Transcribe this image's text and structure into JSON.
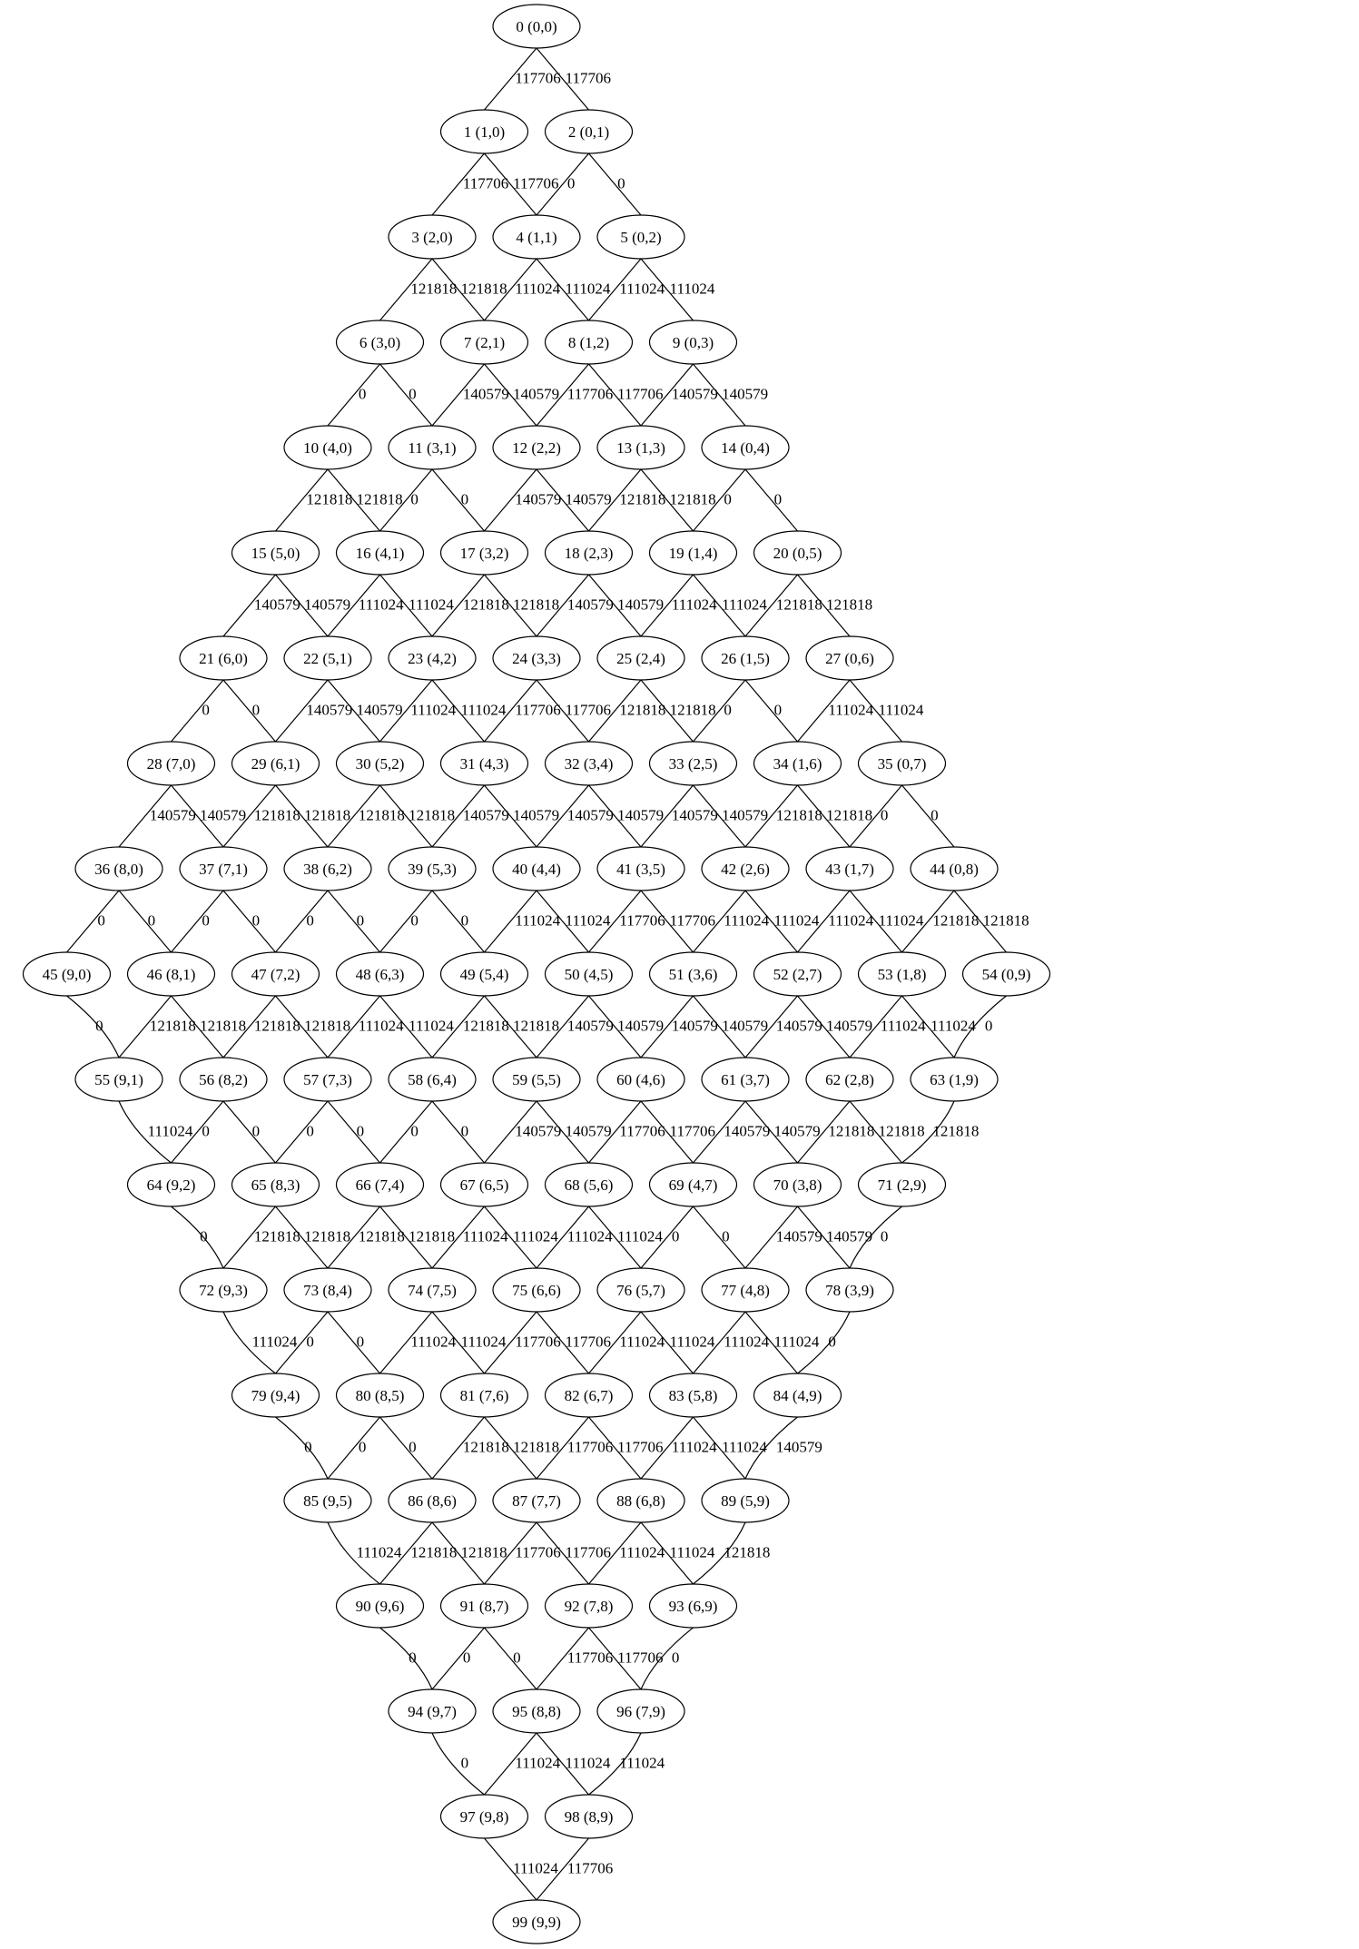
{
  "nodes": [
    {
      "id": 0,
      "label": "0 (0,0)"
    },
    {
      "id": 1,
      "label": "1 (1,0)"
    },
    {
      "id": 2,
      "label": "2 (0,1)"
    },
    {
      "id": 3,
      "label": "3 (2,0)"
    },
    {
      "id": 4,
      "label": "4 (1,1)"
    },
    {
      "id": 5,
      "label": "5 (0,2)"
    },
    {
      "id": 6,
      "label": "6 (3,0)"
    },
    {
      "id": 7,
      "label": "7 (2,1)"
    },
    {
      "id": 8,
      "label": "8 (1,2)"
    },
    {
      "id": 9,
      "label": "9 (0,3)"
    },
    {
      "id": 10,
      "label": "10 (4,0)"
    },
    {
      "id": 11,
      "label": "11 (3,1)"
    },
    {
      "id": 12,
      "label": "12 (2,2)"
    },
    {
      "id": 13,
      "label": "13 (1,3)"
    },
    {
      "id": 14,
      "label": "14 (0,4)"
    },
    {
      "id": 15,
      "label": "15 (5,0)"
    },
    {
      "id": 16,
      "label": "16 (4,1)"
    },
    {
      "id": 17,
      "label": "17 (3,2)"
    },
    {
      "id": 18,
      "label": "18 (2,3)"
    },
    {
      "id": 19,
      "label": "19 (1,4)"
    },
    {
      "id": 20,
      "label": "20 (0,5)"
    },
    {
      "id": 21,
      "label": "21 (6,0)"
    },
    {
      "id": 22,
      "label": "22 (5,1)"
    },
    {
      "id": 23,
      "label": "23 (4,2)"
    },
    {
      "id": 24,
      "label": "24 (3,3)"
    },
    {
      "id": 25,
      "label": "25 (2,4)"
    },
    {
      "id": 26,
      "label": "26 (1,5)"
    },
    {
      "id": 27,
      "label": "27 (0,6)"
    },
    {
      "id": 28,
      "label": "28 (7,0)"
    },
    {
      "id": 29,
      "label": "29 (6,1)"
    },
    {
      "id": 30,
      "label": "30 (5,2)"
    },
    {
      "id": 31,
      "label": "31 (4,3)"
    },
    {
      "id": 32,
      "label": "32 (3,4)"
    },
    {
      "id": 33,
      "label": "33 (2,5)"
    },
    {
      "id": 34,
      "label": "34 (1,6)"
    },
    {
      "id": 35,
      "label": "35 (0,7)"
    },
    {
      "id": 36,
      "label": "36 (8,0)"
    },
    {
      "id": 37,
      "label": "37 (7,1)"
    },
    {
      "id": 38,
      "label": "38 (6,2)"
    },
    {
      "id": 39,
      "label": "39 (5,3)"
    },
    {
      "id": 40,
      "label": "40 (4,4)"
    },
    {
      "id": 41,
      "label": "41 (3,5)"
    },
    {
      "id": 42,
      "label": "42 (2,6)"
    },
    {
      "id": 43,
      "label": "43 (1,7)"
    },
    {
      "id": 44,
      "label": "44 (0,8)"
    },
    {
      "id": 45,
      "label": "45 (9,0)"
    },
    {
      "id": 46,
      "label": "46 (8,1)"
    },
    {
      "id": 47,
      "label": "47 (7,2)"
    },
    {
      "id": 48,
      "label": "48 (6,3)"
    },
    {
      "id": 49,
      "label": "49 (5,4)"
    },
    {
      "id": 50,
      "label": "50 (4,5)"
    },
    {
      "id": 51,
      "label": "51 (3,6)"
    },
    {
      "id": 52,
      "label": "52 (2,7)"
    },
    {
      "id": 53,
      "label": "53 (1,8)"
    },
    {
      "id": 54,
      "label": "54 (0,9)"
    },
    {
      "id": 55,
      "label": "55 (9,1)"
    },
    {
      "id": 56,
      "label": "56 (8,2)"
    },
    {
      "id": 57,
      "label": "57 (7,3)"
    },
    {
      "id": 58,
      "label": "58 (6,4)"
    },
    {
      "id": 59,
      "label": "59 (5,5)"
    },
    {
      "id": 60,
      "label": "60 (4,6)"
    },
    {
      "id": 61,
      "label": "61 (3,7)"
    },
    {
      "id": 62,
      "label": "62 (2,8)"
    },
    {
      "id": 63,
      "label": "63 (1,9)"
    },
    {
      "id": 64,
      "label": "64 (9,2)"
    },
    {
      "id": 65,
      "label": "65 (8,3)"
    },
    {
      "id": 66,
      "label": "66 (7,4)"
    },
    {
      "id": 67,
      "label": "67 (6,5)"
    },
    {
      "id": 68,
      "label": "68 (5,6)"
    },
    {
      "id": 69,
      "label": "69 (4,7)"
    },
    {
      "id": 70,
      "label": "70 (3,8)"
    },
    {
      "id": 71,
      "label": "71 (2,9)"
    },
    {
      "id": 72,
      "label": "72 (9,3)"
    },
    {
      "id": 73,
      "label": "73 (8,4)"
    },
    {
      "id": 74,
      "label": "74 (7,5)"
    },
    {
      "id": 75,
      "label": "75 (6,6)"
    },
    {
      "id": 76,
      "label": "76 (5,7)"
    },
    {
      "id": 77,
      "label": "77 (4,8)"
    },
    {
      "id": 78,
      "label": "78 (3,9)"
    },
    {
      "id": 79,
      "label": "79 (9,4)"
    },
    {
      "id": 80,
      "label": "80 (8,5)"
    },
    {
      "id": 81,
      "label": "81 (7,6)"
    },
    {
      "id": 82,
      "label": "82 (6,7)"
    },
    {
      "id": 83,
      "label": "83 (5,8)"
    },
    {
      "id": 84,
      "label": "84 (4,9)"
    },
    {
      "id": 85,
      "label": "85 (9,5)"
    },
    {
      "id": 86,
      "label": "86 (8,6)"
    },
    {
      "id": 87,
      "label": "87 (7,7)"
    },
    {
      "id": 88,
      "label": "88 (6,8)"
    },
    {
      "id": 89,
      "label": "89 (5,9)"
    },
    {
      "id": 90,
      "label": "90 (9,6)"
    },
    {
      "id": 91,
      "label": "91 (8,7)"
    },
    {
      "id": 92,
      "label": "92 (7,8)"
    },
    {
      "id": 93,
      "label": "93 (6,9)"
    },
    {
      "id": 94,
      "label": "94 (9,7)"
    },
    {
      "id": 95,
      "label": "95 (8,8)"
    },
    {
      "id": 96,
      "label": "96 (7,9)"
    },
    {
      "id": 97,
      "label": "97 (9,8)"
    },
    {
      "id": 98,
      "label": "98 (8,9)"
    },
    {
      "id": 99,
      "label": "99 (9,9)"
    }
  ],
  "edges": [
    {
      "from": 0,
      "to": 1,
      "label": "117706"
    },
    {
      "from": 0,
      "to": 2,
      "label": "117706"
    },
    {
      "from": 1,
      "to": 3,
      "label": "117706"
    },
    {
      "from": 1,
      "to": 4,
      "label": "117706"
    },
    {
      "from": 2,
      "to": 4,
      "label": "0"
    },
    {
      "from": 2,
      "to": 5,
      "label": "0"
    },
    {
      "from": 3,
      "to": 6,
      "label": "121818"
    },
    {
      "from": 3,
      "to": 7,
      "label": "121818"
    },
    {
      "from": 4,
      "to": 7,
      "label": "111024"
    },
    {
      "from": 4,
      "to": 8,
      "label": "111024"
    },
    {
      "from": 5,
      "to": 8,
      "label": "111024"
    },
    {
      "from": 5,
      "to": 9,
      "label": "111024"
    },
    {
      "from": 6,
      "to": 10,
      "label": "0"
    },
    {
      "from": 6,
      "to": 11,
      "label": "0"
    },
    {
      "from": 7,
      "to": 11,
      "label": "140579"
    },
    {
      "from": 7,
      "to": 12,
      "label": "140579"
    },
    {
      "from": 8,
      "to": 12,
      "label": "117706"
    },
    {
      "from": 8,
      "to": 13,
      "label": "117706"
    },
    {
      "from": 9,
      "to": 13,
      "label": "140579"
    },
    {
      "from": 9,
      "to": 14,
      "label": "140579"
    },
    {
      "from": 10,
      "to": 15,
      "label": "121818"
    },
    {
      "from": 10,
      "to": 16,
      "label": "121818"
    },
    {
      "from": 11,
      "to": 16,
      "label": "0"
    },
    {
      "from": 11,
      "to": 17,
      "label": "0"
    },
    {
      "from": 12,
      "to": 17,
      "label": "140579"
    },
    {
      "from": 12,
      "to": 18,
      "label": "140579"
    },
    {
      "from": 13,
      "to": 18,
      "label": "121818"
    },
    {
      "from": 13,
      "to": 19,
      "label": "121818"
    },
    {
      "from": 14,
      "to": 19,
      "label": "0"
    },
    {
      "from": 14,
      "to": 20,
      "label": "0"
    },
    {
      "from": 15,
      "to": 21,
      "label": "140579"
    },
    {
      "from": 15,
      "to": 22,
      "label": "140579"
    },
    {
      "from": 16,
      "to": 22,
      "label": "111024"
    },
    {
      "from": 16,
      "to": 23,
      "label": "111024"
    },
    {
      "from": 17,
      "to": 23,
      "label": "121818"
    },
    {
      "from": 17,
      "to": 24,
      "label": "121818"
    },
    {
      "from": 18,
      "to": 24,
      "label": "140579"
    },
    {
      "from": 18,
      "to": 25,
      "label": "140579"
    },
    {
      "from": 19,
      "to": 25,
      "label": "111024"
    },
    {
      "from": 19,
      "to": 26,
      "label": "111024"
    },
    {
      "from": 20,
      "to": 26,
      "label": "121818"
    },
    {
      "from": 20,
      "to": 27,
      "label": "121818"
    },
    {
      "from": 21,
      "to": 28,
      "label": "0"
    },
    {
      "from": 21,
      "to": 29,
      "label": "0"
    },
    {
      "from": 22,
      "to": 29,
      "label": "140579"
    },
    {
      "from": 22,
      "to": 30,
      "label": "140579"
    },
    {
      "from": 23,
      "to": 30,
      "label": "111024"
    },
    {
      "from": 23,
      "to": 31,
      "label": "111024"
    },
    {
      "from": 24,
      "to": 31,
      "label": "117706"
    },
    {
      "from": 24,
      "to": 32,
      "label": "117706"
    },
    {
      "from": 25,
      "to": 32,
      "label": "121818"
    },
    {
      "from": 25,
      "to": 33,
      "label": "121818"
    },
    {
      "from": 26,
      "to": 33,
      "label": "0"
    },
    {
      "from": 26,
      "to": 34,
      "label": "0"
    },
    {
      "from": 27,
      "to": 34,
      "label": "111024"
    },
    {
      "from": 27,
      "to": 35,
      "label": "111024"
    },
    {
      "from": 28,
      "to": 36,
      "label": "140579"
    },
    {
      "from": 28,
      "to": 37,
      "label": "140579"
    },
    {
      "from": 29,
      "to": 37,
      "label": "121818"
    },
    {
      "from": 29,
      "to": 38,
      "label": "121818"
    },
    {
      "from": 30,
      "to": 38,
      "label": "121818"
    },
    {
      "from": 30,
      "to": 39,
      "label": "121818"
    },
    {
      "from": 31,
      "to": 39,
      "label": "140579"
    },
    {
      "from": 31,
      "to": 40,
      "label": "140579"
    },
    {
      "from": 32,
      "to": 40,
      "label": "140579"
    },
    {
      "from": 32,
      "to": 41,
      "label": "140579"
    },
    {
      "from": 33,
      "to": 41,
      "label": "140579"
    },
    {
      "from": 33,
      "to": 42,
      "label": "140579"
    },
    {
      "from": 34,
      "to": 42,
      "label": "121818"
    },
    {
      "from": 34,
      "to": 43,
      "label": "121818"
    },
    {
      "from": 35,
      "to": 43,
      "label": "0"
    },
    {
      "from": 35,
      "to": 44,
      "label": "0"
    },
    {
      "from": 36,
      "to": 45,
      "label": "0"
    },
    {
      "from": 36,
      "to": 46,
      "label": "0"
    },
    {
      "from": 37,
      "to": 46,
      "label": "0"
    },
    {
      "from": 37,
      "to": 47,
      "label": "0"
    },
    {
      "from": 38,
      "to": 47,
      "label": "0"
    },
    {
      "from": 38,
      "to": 48,
      "label": "0"
    },
    {
      "from": 39,
      "to": 48,
      "label": "0"
    },
    {
      "from": 39,
      "to": 49,
      "label": "0"
    },
    {
      "from": 40,
      "to": 49,
      "label": "111024"
    },
    {
      "from": 40,
      "to": 50,
      "label": "111024"
    },
    {
      "from": 41,
      "to": 50,
      "label": "117706"
    },
    {
      "from": 41,
      "to": 51,
      "label": "117706"
    },
    {
      "from": 42,
      "to": 51,
      "label": "111024"
    },
    {
      "from": 42,
      "to": 52,
      "label": "111024"
    },
    {
      "from": 43,
      "to": 52,
      "label": "111024"
    },
    {
      "from": 43,
      "to": 53,
      "label": "111024"
    },
    {
      "from": 44,
      "to": 53,
      "label": "121818"
    },
    {
      "from": 44,
      "to": 54,
      "label": "121818"
    },
    {
      "from": 45,
      "to": 55,
      "label": "0"
    },
    {
      "from": 46,
      "to": 55,
      "label": "121818"
    },
    {
      "from": 46,
      "to": 56,
      "label": "121818"
    },
    {
      "from": 47,
      "to": 56,
      "label": "121818"
    },
    {
      "from": 47,
      "to": 57,
      "label": "121818"
    },
    {
      "from": 48,
      "to": 57,
      "label": "111024"
    },
    {
      "from": 48,
      "to": 58,
      "label": "111024"
    },
    {
      "from": 49,
      "to": 58,
      "label": "121818"
    },
    {
      "from": 49,
      "to": 59,
      "label": "121818"
    },
    {
      "from": 50,
      "to": 59,
      "label": "140579"
    },
    {
      "from": 50,
      "to": 60,
      "label": "140579"
    },
    {
      "from": 51,
      "to": 60,
      "label": "140579"
    },
    {
      "from": 51,
      "to": 61,
      "label": "140579"
    },
    {
      "from": 52,
      "to": 61,
      "label": "140579"
    },
    {
      "from": 52,
      "to": 62,
      "label": "140579"
    },
    {
      "from": 53,
      "to": 62,
      "label": "111024"
    },
    {
      "from": 53,
      "to": 63,
      "label": "111024"
    },
    {
      "from": 54,
      "to": 63,
      "label": "0"
    },
    {
      "from": 55,
      "to": 64,
      "label": "111024"
    },
    {
      "from": 56,
      "to": 64,
      "label": "0"
    },
    {
      "from": 56,
      "to": 65,
      "label": "0"
    },
    {
      "from": 57,
      "to": 65,
      "label": "0"
    },
    {
      "from": 57,
      "to": 66,
      "label": "0"
    },
    {
      "from": 58,
      "to": 66,
      "label": "0"
    },
    {
      "from": 58,
      "to": 67,
      "label": "0"
    },
    {
      "from": 59,
      "to": 67,
      "label": "140579"
    },
    {
      "from": 59,
      "to": 68,
      "label": "140579"
    },
    {
      "from": 60,
      "to": 68,
      "label": "117706"
    },
    {
      "from": 60,
      "to": 69,
      "label": "117706"
    },
    {
      "from": 61,
      "to": 69,
      "label": "140579"
    },
    {
      "from": 61,
      "to": 70,
      "label": "140579"
    },
    {
      "from": 62,
      "to": 70,
      "label": "121818"
    },
    {
      "from": 62,
      "to": 71,
      "label": "121818"
    },
    {
      "from": 63,
      "to": 71,
      "label": "121818"
    },
    {
      "from": 64,
      "to": 72,
      "label": "0"
    },
    {
      "from": 65,
      "to": 72,
      "label": "121818"
    },
    {
      "from": 65,
      "to": 73,
      "label": "121818"
    },
    {
      "from": 66,
      "to": 73,
      "label": "121818"
    },
    {
      "from": 66,
      "to": 74,
      "label": "121818"
    },
    {
      "from": 67,
      "to": 74,
      "label": "111024"
    },
    {
      "from": 67,
      "to": 75,
      "label": "111024"
    },
    {
      "from": 68,
      "to": 75,
      "label": "111024"
    },
    {
      "from": 68,
      "to": 76,
      "label": "111024"
    },
    {
      "from": 69,
      "to": 76,
      "label": "0"
    },
    {
      "from": 69,
      "to": 77,
      "label": "0"
    },
    {
      "from": 70,
      "to": 77,
      "label": "140579"
    },
    {
      "from": 70,
      "to": 78,
      "label": "140579"
    },
    {
      "from": 71,
      "to": 78,
      "label": "0"
    },
    {
      "from": 72,
      "to": 79,
      "label": "111024"
    },
    {
      "from": 73,
      "to": 79,
      "label": "0"
    },
    {
      "from": 73,
      "to": 80,
      "label": "0"
    },
    {
      "from": 74,
      "to": 80,
      "label": "111024"
    },
    {
      "from": 74,
      "to": 81,
      "label": "111024"
    },
    {
      "from": 75,
      "to": 81,
      "label": "117706"
    },
    {
      "from": 75,
      "to": 82,
      "label": "117706"
    },
    {
      "from": 76,
      "to": 82,
      "label": "111024"
    },
    {
      "from": 76,
      "to": 83,
      "label": "111024"
    },
    {
      "from": 77,
      "to": 83,
      "label": "111024"
    },
    {
      "from": 77,
      "to": 84,
      "label": "111024"
    },
    {
      "from": 78,
      "to": 84,
      "label": "0"
    },
    {
      "from": 79,
      "to": 85,
      "label": "0"
    },
    {
      "from": 80,
      "to": 85,
      "label": "0"
    },
    {
      "from": 80,
      "to": 86,
      "label": "0"
    },
    {
      "from": 81,
      "to": 86,
      "label": "121818"
    },
    {
      "from": 81,
      "to": 87,
      "label": "121818"
    },
    {
      "from": 82,
      "to": 87,
      "label": "117706"
    },
    {
      "from": 82,
      "to": 88,
      "label": "117706"
    },
    {
      "from": 83,
      "to": 88,
      "label": "111024"
    },
    {
      "from": 83,
      "to": 89,
      "label": "111024"
    },
    {
      "from": 84,
      "to": 89,
      "label": "140579"
    },
    {
      "from": 85,
      "to": 90,
      "label": "111024"
    },
    {
      "from": 86,
      "to": 90,
      "label": "121818"
    },
    {
      "from": 86,
      "to": 91,
      "label": "121818"
    },
    {
      "from": 87,
      "to": 91,
      "label": "117706"
    },
    {
      "from": 87,
      "to": 92,
      "label": "117706"
    },
    {
      "from": 88,
      "to": 92,
      "label": "111024"
    },
    {
      "from": 88,
      "to": 93,
      "label": "111024"
    },
    {
      "from": 89,
      "to": 93,
      "label": "121818"
    },
    {
      "from": 90,
      "to": 94,
      "label": "0"
    },
    {
      "from": 91,
      "to": 94,
      "label": "0"
    },
    {
      "from": 91,
      "to": 95,
      "label": "0"
    },
    {
      "from": 92,
      "to": 95,
      "label": "117706"
    },
    {
      "from": 92,
      "to": 96,
      "label": "117706"
    },
    {
      "from": 93,
      "to": 96,
      "label": "0"
    },
    {
      "from": 94,
      "to": 97,
      "label": "0"
    },
    {
      "from": 95,
      "to": 97,
      "label": "111024"
    },
    {
      "from": 95,
      "to": 98,
      "label": "111024"
    },
    {
      "from": 96,
      "to": 98,
      "label": "111024"
    },
    {
      "from": 97,
      "to": 99,
      "label": "111024"
    },
    {
      "from": 98,
      "to": 99,
      "label": "117706"
    }
  ]
}
